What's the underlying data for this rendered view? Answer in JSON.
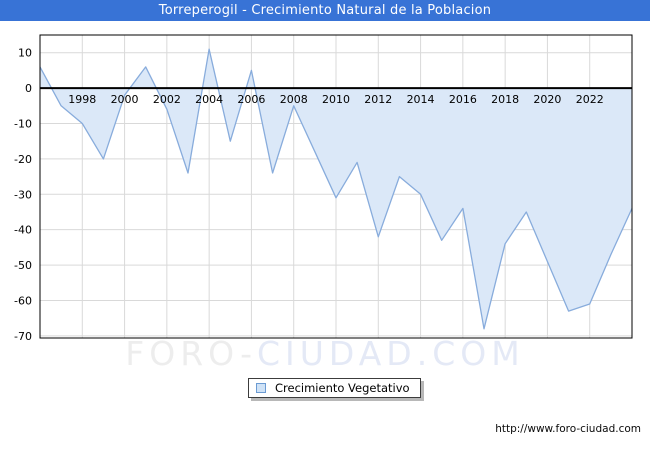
{
  "window": {
    "title": "Torreperogil - Crecimiento Natural de la Poblacion"
  },
  "colors": {
    "frame_blue": "#3873d6",
    "area_fill": "#dbe8f8",
    "line": "#88acdc",
    "grid": "#d9d9d9",
    "axis_black": "#000000",
    "tick_text": "#000000",
    "watermark_gray": "#ededed",
    "watermark_blue": "#e4e9f6"
  },
  "legend": {
    "label": "Crecimiento Vegetativo",
    "swatch_fill": "#cfe2f6",
    "swatch_border": "#6b9bd3"
  },
  "watermark": {
    "part1": "FORO-",
    "part2": "CIUDAD.COM"
  },
  "footer": {
    "url": "http://www.foro-ciudad.com"
  },
  "chart_data": {
    "type": "area",
    "title": "Torreperogil - Crecimiento Natural de la Poblacion",
    "xlabel": "",
    "ylabel": "",
    "x": [
      1996,
      1997,
      1998,
      1999,
      2000,
      2001,
      2002,
      2003,
      2004,
      2005,
      2006,
      2007,
      2008,
      2009,
      2010,
      2011,
      2012,
      2013,
      2014,
      2015,
      2016,
      2017,
      2018,
      2019,
      2020,
      2021,
      2022,
      2023,
      2024
    ],
    "series": [
      {
        "name": "Crecimiento Vegetativo",
        "values": [
          6,
          -5,
          -10,
          -20,
          -2,
          6,
          -6,
          -24,
          11,
          -15,
          5,
          -24,
          -5,
          -18,
          -31,
          -21,
          -42,
          -25,
          -30,
          -43,
          -34,
          -68,
          -44,
          -35,
          -49,
          -63,
          -61,
          -47,
          -34
        ]
      }
    ],
    "xlim": [
      1996,
      2024
    ],
    "ylim": [
      -70.6,
      15
    ],
    "x_ticks": [
      1998,
      2000,
      2002,
      2004,
      2006,
      2008,
      2010,
      2012,
      2014,
      2016,
      2018,
      2020,
      2022
    ],
    "y_ticks": [
      10,
      0,
      -10,
      -20,
      -30,
      -40,
      -50,
      -60,
      -70
    ],
    "baseline": 0,
    "grid": true,
    "legend_position": "bottom"
  }
}
